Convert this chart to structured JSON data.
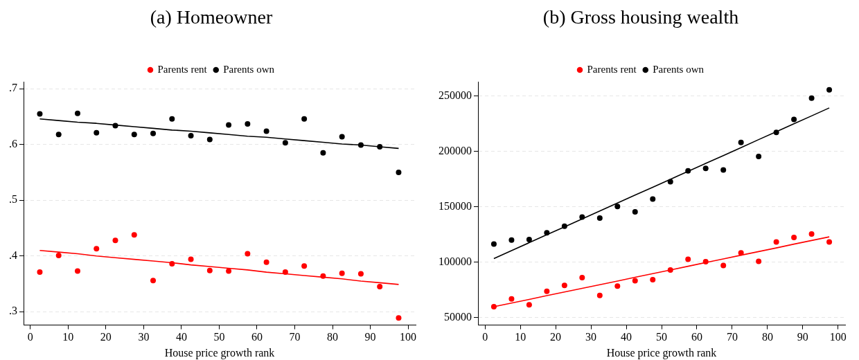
{
  "chart_data": [
    {
      "type": "scatter",
      "title": "(a) Homeowner",
      "xlabel": "House price growth rank",
      "legend": "top",
      "marker": "circle",
      "grid": "y",
      "xlim": [
        -1.8,
        102
      ],
      "xticks": [
        0,
        10,
        20,
        30,
        40,
        50,
        60,
        70,
        80,
        90,
        100
      ],
      "ylim": [
        0.276,
        0.712
      ],
      "yticks": [
        {
          "value": 0.3,
          "label": ".3"
        },
        {
          "value": 0.4,
          "label": ".4"
        },
        {
          "value": 0.5,
          "label": ".5"
        },
        {
          "value": 0.6,
          "label": ".6"
        },
        {
          "value": 0.7,
          "label": ".7"
        }
      ],
      "x": [
        2.5,
        7.5,
        12.5,
        17.5,
        22.5,
        27.5,
        32.5,
        37.5,
        42.5,
        47.5,
        52.5,
        57.5,
        62.5,
        67.5,
        72.5,
        77.5,
        82.5,
        87.5,
        92.5,
        97.5
      ],
      "series": [
        {
          "name": "Parents rent",
          "color": "#ff0000",
          "values": [
            0.371,
            0.401,
            0.373,
            0.413,
            0.428,
            0.438,
            0.356,
            0.386,
            0.394,
            0.374,
            0.373,
            0.404,
            0.389,
            0.371,
            0.382,
            0.364,
            0.369,
            0.368,
            0.345,
            0.289
          ]
        },
        {
          "name": "Parents own",
          "color": "#000000",
          "values": [
            0.655,
            0.618,
            0.656,
            0.621,
            0.634,
            0.618,
            0.62,
            0.646,
            0.616,
            0.609,
            0.635,
            0.637,
            0.624,
            0.603,
            0.646,
            0.585,
            0.614,
            0.599,
            0.596,
            0.55
          ]
        },
        {
          "type": "line",
          "marker": "none",
          "color": "#ff0000",
          "values": [
            0.41,
            0.407,
            0.404,
            0.4,
            0.397,
            0.394,
            0.391,
            0.388,
            0.384,
            0.381,
            0.378,
            0.375,
            0.371,
            0.368,
            0.365,
            0.362,
            0.359,
            0.355,
            0.352,
            0.349
          ]
        },
        {
          "type": "line",
          "marker": "none",
          "color": "#000000",
          "values": [
            0.646,
            0.643,
            0.64,
            0.638,
            0.635,
            0.632,
            0.629,
            0.626,
            0.624,
            0.621,
            0.618,
            0.615,
            0.613,
            0.61,
            0.607,
            0.604,
            0.601,
            0.599,
            0.596,
            0.593
          ]
        }
      ]
    },
    {
      "type": "scatter",
      "title": "(b) Gross housing wealth",
      "xlabel": "House price growth rank",
      "legend": "top",
      "marker": "circle",
      "grid": "y",
      "xlim": [
        -2,
        102
      ],
      "xticks": [
        0,
        10,
        20,
        30,
        40,
        50,
        60,
        70,
        80,
        90,
        100
      ],
      "ylim": [
        43200,
        262600
      ],
      "yticks": [
        50000,
        100000,
        150000,
        200000,
        250000
      ],
      "x": [
        2.5,
        7.5,
        12.5,
        17.5,
        22.5,
        27.5,
        32.5,
        37.5,
        42.5,
        47.5,
        52.5,
        57.5,
        62.5,
        67.5,
        72.5,
        77.5,
        82.5,
        87.5,
        92.5,
        97.5
      ],
      "series": [
        {
          "name": "Parents rent",
          "color": "#ff0000",
          "values": [
            59800,
            66900,
            61500,
            73800,
            79000,
            86100,
            70000,
            78400,
            83300,
            84200,
            92900,
            102700,
            100500,
            97000,
            108500,
            100800,
            118300,
            122400,
            125400,
            118300
          ]
        },
        {
          "name": "Parents own",
          "color": "#000000",
          "values": [
            116400,
            120000,
            120500,
            126500,
            132500,
            140700,
            139900,
            150300,
            145400,
            157100,
            172700,
            182500,
            184700,
            183300,
            208200,
            195400,
            217200,
            228900,
            248100,
            255700
          ]
        },
        {
          "type": "line",
          "marker": "none",
          "color": "#ff0000",
          "values": [
            59800,
            63100,
            66400,
            69800,
            73100,
            76400,
            79700,
            83000,
            86400,
            89700,
            93000,
            96300,
            99700,
            103000,
            106300,
            109600,
            112900,
            116300,
            119600,
            122900
          ]
        },
        {
          "type": "line",
          "marker": "none",
          "color": "#000000",
          "values": [
            103300,
            110500,
            117600,
            124800,
            131900,
            139100,
            146200,
            153400,
            160600,
            167700,
            174900,
            182000,
            189200,
            196300,
            203500,
            210700,
            217800,
            225000,
            232100,
            239300
          ]
        }
      ]
    }
  ]
}
